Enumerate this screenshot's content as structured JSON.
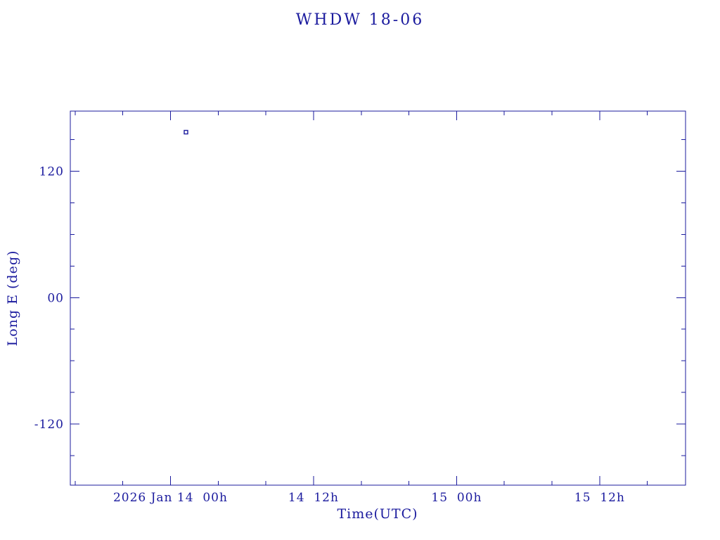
{
  "page": {
    "title": "WHDW 18-06"
  },
  "chart_data": {
    "type": "scatter",
    "title": "WHDW 18-06",
    "xlabel": "Time(UTC)",
    "ylabel": "Long E (deg)",
    "x_unit": "hours since 2026 Jan 14 00:00 UTC",
    "xlim": [
      -8.4,
      43.2
    ],
    "ylim": [
      -178,
      177
    ],
    "x_major_ticks": [
      {
        "value": 0,
        "label": "2026 Jan 14  00h"
      },
      {
        "value": 12,
        "label": "14  12h"
      },
      {
        "value": 24,
        "label": "15  00h"
      },
      {
        "value": 36,
        "label": "15  12h"
      }
    ],
    "x_minor_step": 4,
    "y_major_ticks": [
      {
        "value": 120,
        "label": "120"
      },
      {
        "value": 0,
        "label": "00"
      },
      {
        "value": -120,
        "label": "-120"
      }
    ],
    "y_minor_step": 30,
    "points": [
      {
        "x": 1.3,
        "y": 157,
        "marker": "open-square",
        "readable": "~2026 Jan 14 01:20 UTC, Long E ~157 deg"
      }
    ],
    "grid": false,
    "legend": null,
    "frame_color": "#1b1b9e",
    "marker_color": "#1b1b9e",
    "background": "#ffffff"
  }
}
